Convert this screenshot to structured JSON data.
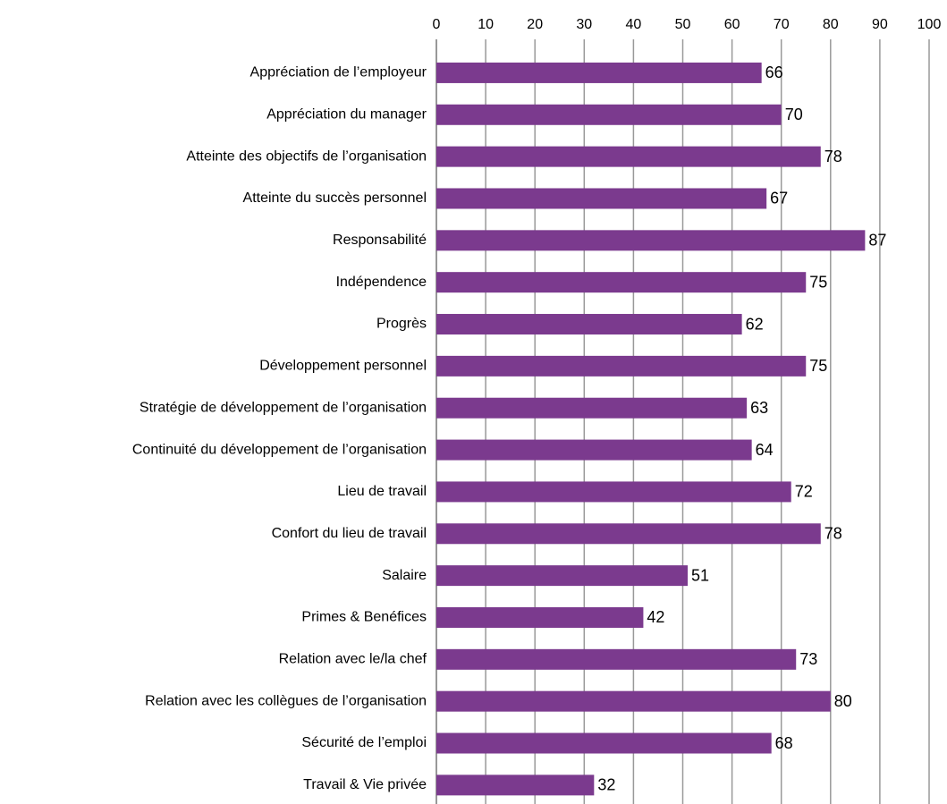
{
  "chart_data": {
    "type": "barh",
    "categories": [
      "Appréciation de l’employeur",
      "Appréciation du manager",
      "Atteinte des objectifs de l’organisation",
      "Atteinte du succès personnel",
      "Responsabilité",
      "Indépendence",
      "Progrès",
      "Développement personnel",
      "Stratégie de développement de l’organisation",
      "Continuité du développement de l’organisation",
      "Lieu de travail",
      "Confort du lieu de travail",
      "Salaire",
      "Primes & Benéfices",
      "Relation avec le/la chef",
      "Relation avec les collègues de l’organisation",
      "Sécurité de l’emploi",
      "Travail & Vie privée"
    ],
    "values": [
      66,
      70,
      78,
      67,
      87,
      75,
      62,
      75,
      63,
      64,
      72,
      78,
      51,
      42,
      73,
      80,
      68,
      32
    ],
    "color": "#7b3a8e",
    "xlim": [
      0,
      100
    ],
    "xticks": [
      0,
      10,
      20,
      30,
      40,
      50,
      60,
      70,
      80,
      90,
      100
    ],
    "grid": true
  }
}
